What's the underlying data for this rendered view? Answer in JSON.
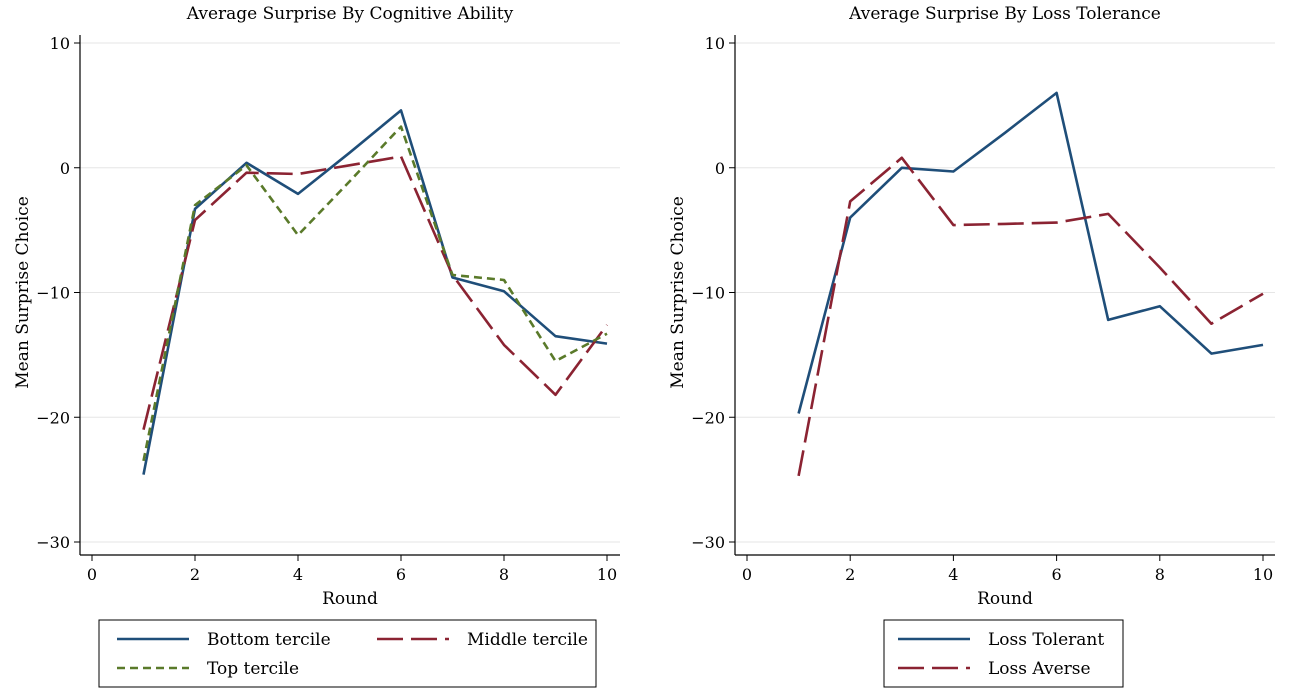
{
  "chart_data": [
    {
      "type": "line",
      "title": "Average Surprise By Cognitive Ability",
      "xlabel": "Round",
      "ylabel": "Mean Surprise Choice",
      "xlim": [
        0,
        10
      ],
      "ylim": [
        -30,
        10
      ],
      "xticks": [
        "0",
        "2",
        "4",
        "6",
        "8",
        "10"
      ],
      "yticks": [
        "10",
        "0",
        "−10",
        "−20",
        "−30"
      ],
      "grid": true,
      "legend_position": "bottom",
      "x": [
        1,
        2,
        3,
        4,
        5,
        6,
        7,
        8,
        9,
        10
      ],
      "series": [
        {
          "name": "Bottom tercile",
          "color": "#1f4e79",
          "dash": "solid",
          "values": [
            -24.6,
            -3.3,
            0.4,
            -2.1,
            1.2,
            4.6,
            -8.8,
            -9.9,
            -13.5,
            -14.1
          ]
        },
        {
          "name": "Middle tercile",
          "color": "#8b2332",
          "dash": "longdash",
          "values": [
            -21.0,
            -4.2,
            -0.4,
            -0.5,
            0.2,
            0.9,
            -8.6,
            -14.2,
            -18.2,
            -12.6
          ]
        },
        {
          "name": "Top tercile",
          "color": "#5a7a2a",
          "dash": "shortdash",
          "values": [
            -23.5,
            -3.0,
            0.2,
            -5.4,
            -1.1,
            3.3,
            -8.6,
            -9.0,
            -15.5,
            -13.3
          ]
        }
      ]
    },
    {
      "type": "line",
      "title": "Average Surprise By Loss Tolerance",
      "xlabel": "Round",
      "ylabel": "Mean Surprise Choice",
      "xlim": [
        0,
        10
      ],
      "ylim": [
        -30,
        10
      ],
      "xticks": [
        "0",
        "2",
        "4",
        "6",
        "8",
        "10"
      ],
      "yticks": [
        "10",
        "0",
        "−10",
        "−20",
        "−30"
      ],
      "grid": true,
      "legend_position": "bottom",
      "x": [
        1,
        2,
        3,
        4,
        5,
        6,
        7,
        8,
        9,
        10
      ],
      "series": [
        {
          "name": "Loss Tolerant",
          "color": "#1f4e79",
          "dash": "solid",
          "values": [
            -19.7,
            -4.0,
            0.0,
            -0.3,
            2.8,
            6.0,
            -12.2,
            -11.1,
            -14.9,
            -14.2
          ]
        },
        {
          "name": "Loss Averse",
          "color": "#8b2332",
          "dash": "longdash",
          "values": [
            -24.7,
            -2.7,
            0.8,
            -4.6,
            -4.5,
            -4.4,
            -3.7,
            -8.0,
            -12.5,
            -10.1
          ]
        }
      ]
    }
  ]
}
